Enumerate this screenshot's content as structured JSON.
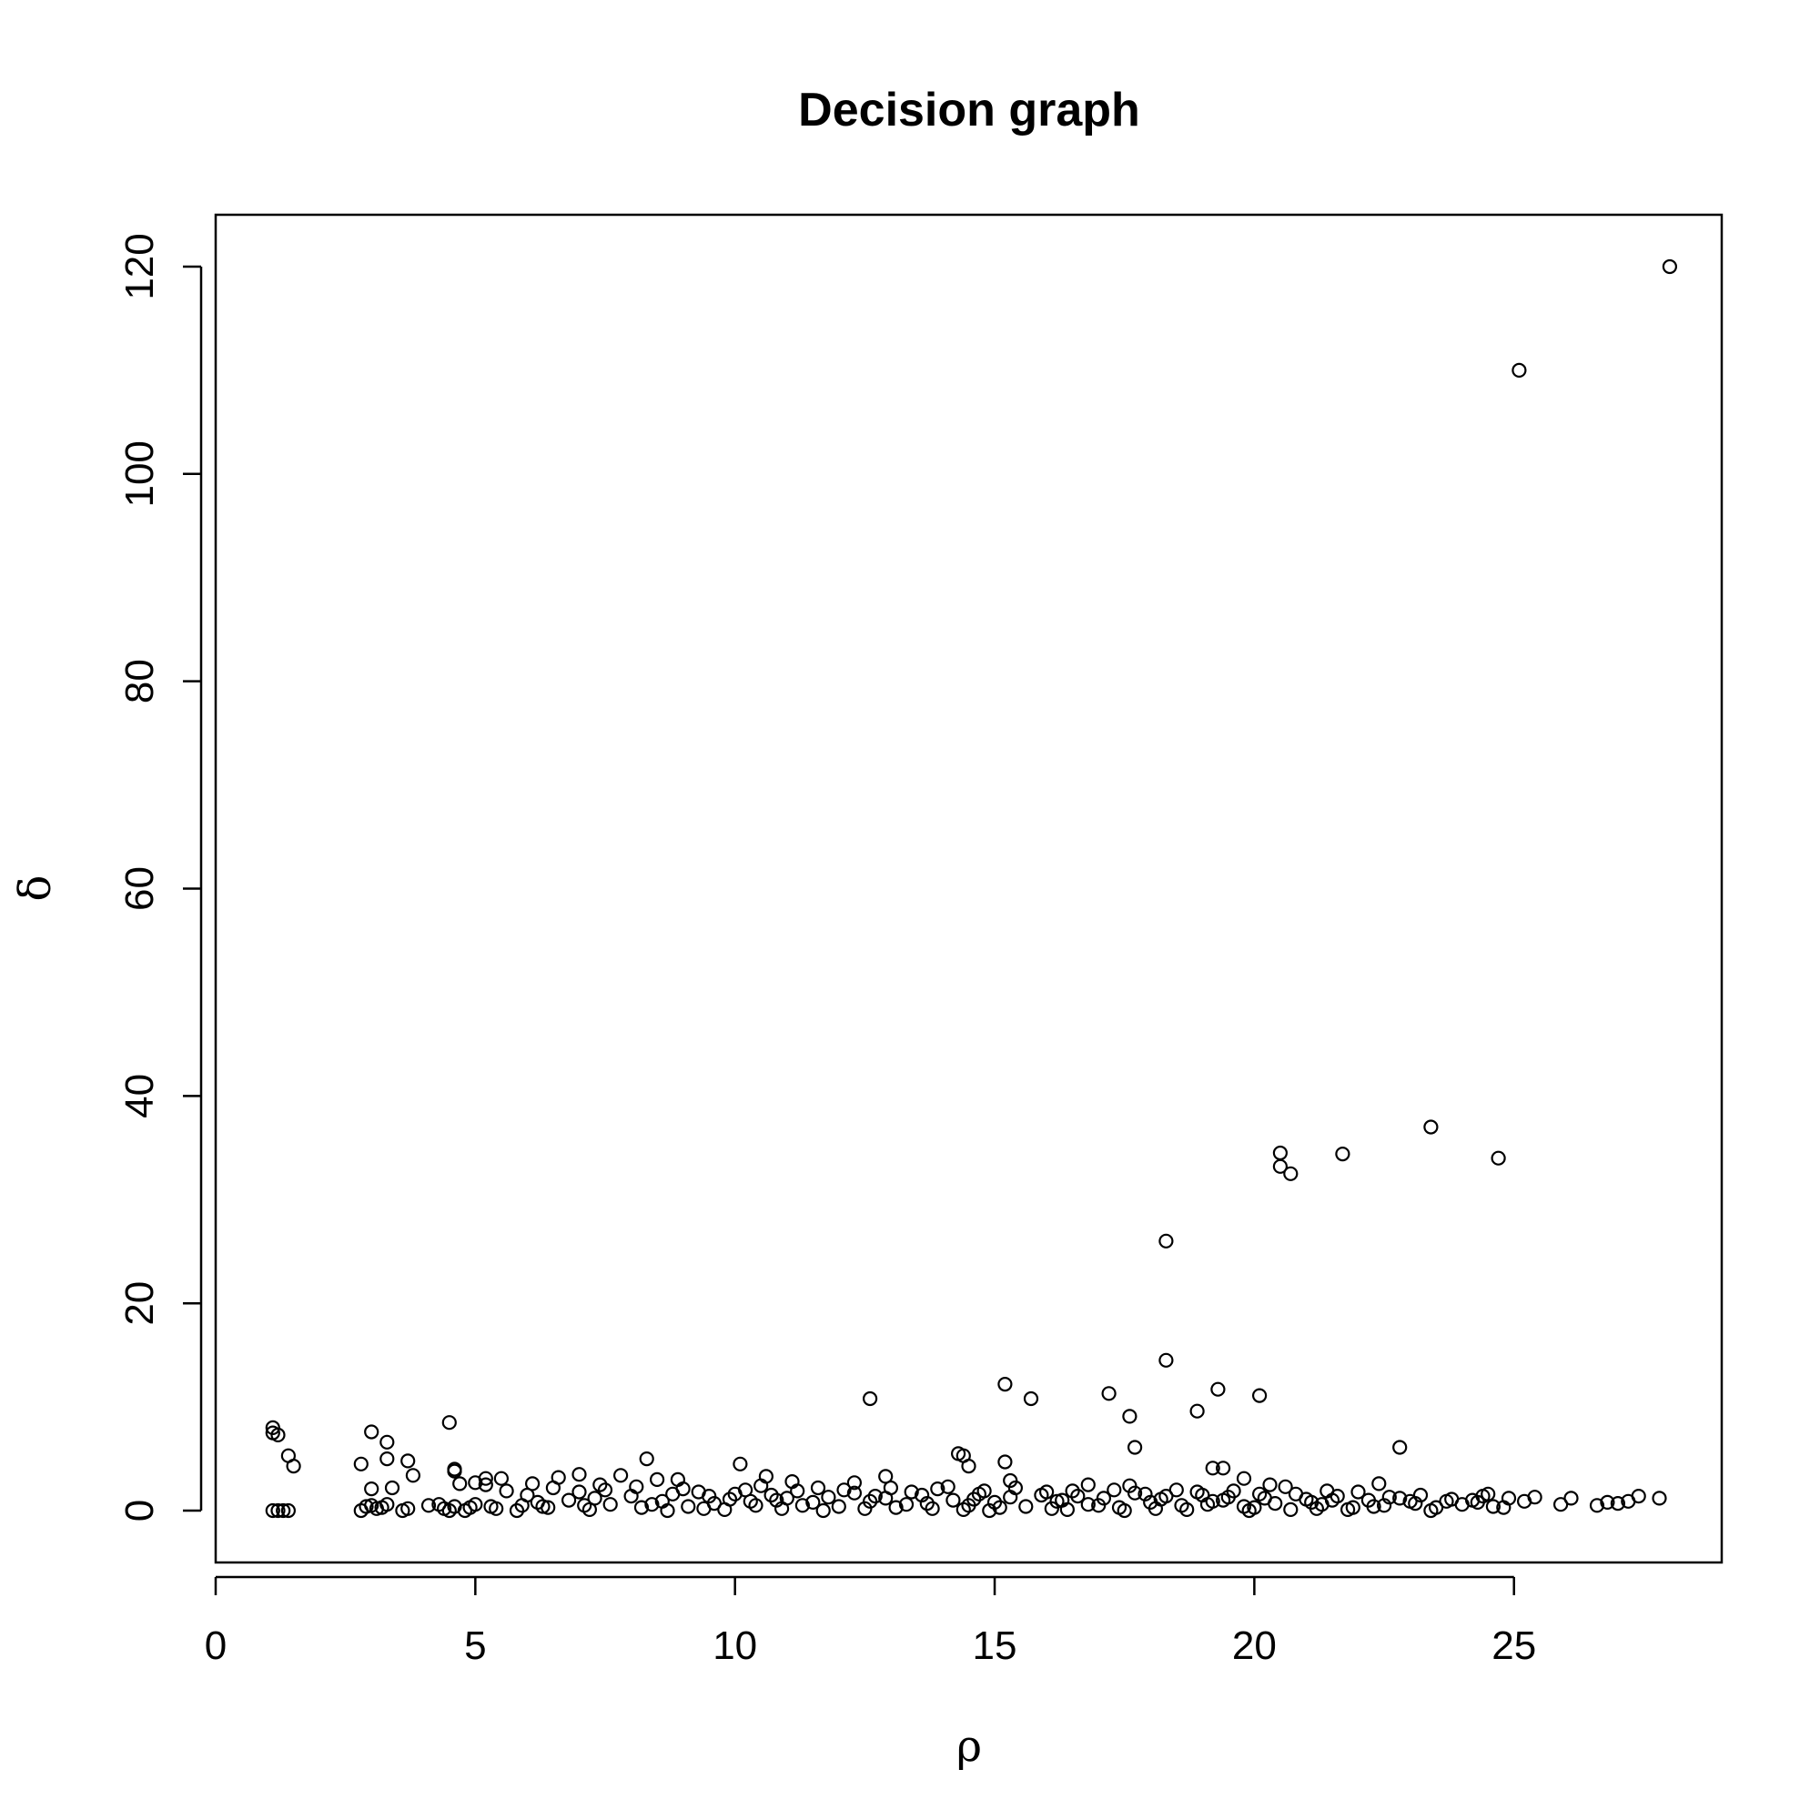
{
  "chart_data": {
    "type": "scatter",
    "title": "Decision graph",
    "xlabel": "ρ",
    "ylabel": "δ",
    "xlim": [
      0,
      29
    ],
    "ylim": [
      -5,
      125
    ],
    "xticks": [
      0,
      5,
      10,
      15,
      20,
      25
    ],
    "yticks": [
      0,
      20,
      40,
      60,
      80,
      100,
      120
    ],
    "grid": false,
    "legend": "none",
    "marker": "open-circle",
    "point_color": "#000000",
    "points": [
      [
        28.0,
        120.0
      ],
      [
        25.1,
        110.0
      ],
      [
        23.4,
        37.0
      ],
      [
        20.5,
        34.5
      ],
      [
        21.7,
        34.4
      ],
      [
        24.7,
        34.0
      ],
      [
        20.5,
        33.2
      ],
      [
        20.7,
        32.5
      ],
      [
        18.3,
        26.0
      ],
      [
        18.3,
        14.5
      ],
      [
        15.2,
        12.2
      ],
      [
        19.3,
        11.7
      ],
      [
        17.2,
        11.3
      ],
      [
        20.1,
        11.1
      ],
      [
        12.6,
        10.8
      ],
      [
        15.7,
        10.8
      ],
      [
        18.9,
        9.6
      ],
      [
        17.6,
        9.1
      ],
      [
        4.5,
        8.5
      ],
      [
        1.1,
        8.0
      ],
      [
        3.0,
        7.6
      ],
      [
        1.2,
        7.3
      ],
      [
        1.1,
        7.5
      ],
      [
        3.3,
        6.6
      ],
      [
        17.7,
        6.1
      ],
      [
        22.8,
        6.1
      ],
      [
        14.3,
        5.5
      ],
      [
        14.4,
        5.3
      ],
      [
        1.4,
        5.3
      ],
      [
        3.3,
        5.0
      ],
      [
        8.3,
        5.0
      ],
      [
        3.7,
        4.8
      ],
      [
        15.2,
        4.7
      ],
      [
        2.8,
        4.5
      ],
      [
        10.1,
        4.5
      ],
      [
        1.5,
        4.3
      ],
      [
        14.5,
        4.3
      ],
      [
        19.2,
        4.1
      ],
      [
        19.4,
        4.1
      ],
      [
        4.6,
        4.0
      ],
      [
        4.6,
        3.8
      ],
      [
        3.8,
        3.4
      ],
      [
        7.0,
        3.5
      ],
      [
        7.8,
        3.4
      ],
      [
        12.9,
        3.3
      ],
      [
        5.5,
        3.1
      ],
      [
        6.6,
        3.2
      ],
      [
        10.6,
        3.3
      ],
      [
        19.8,
        3.1
      ],
      [
        5.2,
        3.1
      ],
      [
        8.5,
        3.0
      ],
      [
        15.3,
        2.9
      ],
      [
        8.9,
        3.0
      ],
      [
        4.7,
        2.6
      ],
      [
        5.0,
        2.7
      ],
      [
        5.2,
        2.5
      ],
      [
        3.0,
        2.1
      ],
      [
        3.4,
        2.2
      ],
      [
        6.1,
        2.6
      ],
      [
        7.4,
        2.5
      ],
      [
        11.1,
        2.8
      ],
      [
        12.3,
        2.7
      ],
      [
        16.8,
        2.5
      ],
      [
        20.3,
        2.5
      ],
      [
        22.4,
        2.6
      ],
      [
        20.6,
        2.3
      ],
      [
        17.6,
        2.4
      ],
      [
        24.5,
        1.6
      ],
      [
        21.4,
        1.9
      ],
      [
        27.4,
        1.4
      ],
      [
        26.1,
        1.2
      ],
      [
        27.8,
        1.2
      ],
      [
        25.4,
        1.3
      ],
      [
        24.9,
        1.2
      ],
      [
        26.8,
        0.8
      ],
      [
        27.0,
        0.7
      ],
      [
        27.2,
        0.9
      ],
      [
        26.6,
        0.5
      ],
      [
        25.9,
        0.6
      ],
      [
        1.1,
        0.0
      ],
      [
        1.2,
        0.0
      ],
      [
        1.3,
        0.0
      ],
      [
        1.4,
        0.0
      ],
      [
        2.8,
        0.0
      ],
      [
        2.9,
        0.4
      ],
      [
        3.0,
        0.5
      ],
      [
        3.1,
        0.2
      ],
      [
        3.2,
        0.3
      ],
      [
        3.3,
        0.6
      ],
      [
        3.6,
        0.0
      ],
      [
        3.7,
        0.2
      ],
      [
        4.1,
        0.5
      ],
      [
        4.3,
        0.6
      ],
      [
        4.4,
        0.2
      ],
      [
        4.5,
        0.0
      ],
      [
        4.6,
        0.4
      ],
      [
        4.8,
        0.0
      ],
      [
        4.9,
        0.3
      ],
      [
        5.0,
        0.6
      ],
      [
        5.3,
        0.4
      ],
      [
        5.4,
        0.2
      ],
      [
        5.8,
        0.0
      ],
      [
        5.9,
        0.5
      ],
      [
        6.2,
        0.8
      ],
      [
        6.4,
        0.3
      ],
      [
        6.8,
        1.0
      ],
      [
        7.1,
        0.5
      ],
      [
        7.3,
        1.2
      ],
      [
        7.6,
        0.6
      ],
      [
        8.0,
        1.4
      ],
      [
        8.2,
        0.3
      ],
      [
        8.6,
        0.9
      ],
      [
        8.8,
        1.6
      ],
      [
        9.1,
        0.4
      ],
      [
        9.3,
        1.8
      ],
      [
        9.6,
        0.7
      ],
      [
        9.9,
        1.1
      ],
      [
        10.2,
        2.0
      ],
      [
        10.4,
        0.5
      ],
      [
        10.7,
        1.5
      ],
      [
        10.9,
        0.2
      ],
      [
        11.2,
        1.9
      ],
      [
        11.5,
        0.8
      ],
      [
        11.8,
        1.3
      ],
      [
        12.0,
        0.4
      ],
      [
        12.3,
        1.7
      ],
      [
        12.6,
        0.9
      ],
      [
        12.9,
        1.2
      ],
      [
        13.1,
        0.3
      ],
      [
        13.4,
        1.8
      ],
      [
        13.7,
        0.7
      ],
      [
        13.9,
        2.1
      ],
      [
        14.2,
        1.0
      ],
      [
        14.5,
        0.5
      ],
      [
        14.7,
        1.6
      ],
      [
        15.0,
        0.8
      ],
      [
        15.3,
        1.3
      ],
      [
        15.6,
        0.4
      ],
      [
        15.9,
        1.5
      ],
      [
        16.2,
        0.9
      ],
      [
        16.5,
        1.9
      ],
      [
        16.8,
        0.6
      ],
      [
        17.1,
        1.2
      ],
      [
        17.4,
        0.3
      ],
      [
        17.7,
        1.7
      ],
      [
        18.0,
        0.8
      ],
      [
        18.3,
        1.4
      ],
      [
        18.6,
        0.5
      ],
      [
        18.9,
        1.8
      ],
      [
        19.2,
        0.9
      ],
      [
        19.5,
        1.3
      ],
      [
        19.8,
        0.4
      ],
      [
        20.1,
        1.6
      ],
      [
        20.4,
        0.7
      ],
      [
        20.7,
        0.1
      ],
      [
        21.0,
        1.1
      ],
      [
        21.3,
        0.6
      ],
      [
        21.6,
        1.4
      ],
      [
        21.9,
        0.3
      ],
      [
        22.2,
        1.0
      ],
      [
        22.5,
        0.5
      ],
      [
        22.8,
        1.2
      ],
      [
        23.1,
        0.7
      ],
      [
        23.4,
        0.0
      ],
      [
        23.7,
        0.9
      ],
      [
        24.0,
        0.6
      ],
      [
        24.3,
        0.8
      ],
      [
        24.6,
        0.4
      ],
      [
        24.8,
        0.3
      ],
      [
        25.2,
        0.9
      ],
      [
        6.0,
        1.5
      ],
      [
        6.5,
        2.2
      ],
      [
        7.0,
        1.8
      ],
      [
        7.5,
        2.0
      ],
      [
        8.1,
        2.3
      ],
      [
        9.0,
        2.1
      ],
      [
        9.5,
        1.4
      ],
      [
        10.0,
        1.6
      ],
      [
        10.5,
        2.4
      ],
      [
        11.0,
        1.2
      ],
      [
        11.6,
        2.2
      ],
      [
        12.1,
        2.0
      ],
      [
        13.0,
        2.2
      ],
      [
        13.6,
        1.5
      ],
      [
        14.1,
        2.3
      ],
      [
        14.8,
        1.9
      ],
      [
        15.4,
        2.2
      ],
      [
        16.0,
        1.8
      ],
      [
        16.6,
        1.4
      ],
      [
        17.3,
        2.0
      ],
      [
        17.9,
        1.6
      ],
      [
        18.5,
        2.0
      ],
      [
        19.0,
        1.5
      ],
      [
        19.6,
        1.9
      ],
      [
        20.2,
        1.2
      ],
      [
        20.8,
        1.6
      ],
      [
        21.5,
        1.0
      ],
      [
        22.0,
        1.8
      ],
      [
        22.6,
        1.3
      ],
      [
        23.2,
        1.5
      ],
      [
        23.8,
        1.1
      ],
      [
        5.6,
        1.9
      ],
      [
        6.3,
        0.4
      ],
      [
        7.2,
        0.1
      ],
      [
        8.4,
        0.6
      ],
      [
        9.4,
        0.2
      ],
      [
        10.3,
        0.9
      ],
      [
        11.3,
        0.5
      ],
      [
        12.5,
        0.2
      ],
      [
        13.3,
        0.6
      ],
      [
        14.4,
        0.1
      ],
      [
        15.1,
        0.3
      ],
      [
        16.1,
        0.2
      ],
      [
        17.0,
        0.5
      ],
      [
        18.1,
        0.2
      ],
      [
        19.1,
        0.6
      ],
      [
        20.0,
        0.3
      ],
      [
        21.2,
        0.2
      ],
      [
        22.3,
        0.4
      ],
      [
        23.5,
        0.3
      ],
      [
        8.7,
        0.0
      ],
      [
        9.8,
        0.1
      ],
      [
        11.7,
        0.0
      ],
      [
        13.8,
        0.2
      ],
      [
        14.9,
        0.0
      ],
      [
        16.4,
        0.1
      ],
      [
        17.5,
        0.0
      ],
      [
        18.7,
        0.1
      ],
      [
        19.9,
        0.0
      ],
      [
        21.8,
        0.1
      ],
      [
        10.8,
        1.0
      ],
      [
        12.7,
        1.4
      ],
      [
        14.6,
        1.1
      ],
      [
        16.3,
        1.0
      ],
      [
        18.2,
        1.1
      ],
      [
        19.4,
        1.0
      ],
      [
        21.1,
        0.8
      ],
      [
        23.0,
        0.9
      ],
      [
        24.2,
        1.0
      ],
      [
        24.4,
        1.4
      ]
    ]
  }
}
